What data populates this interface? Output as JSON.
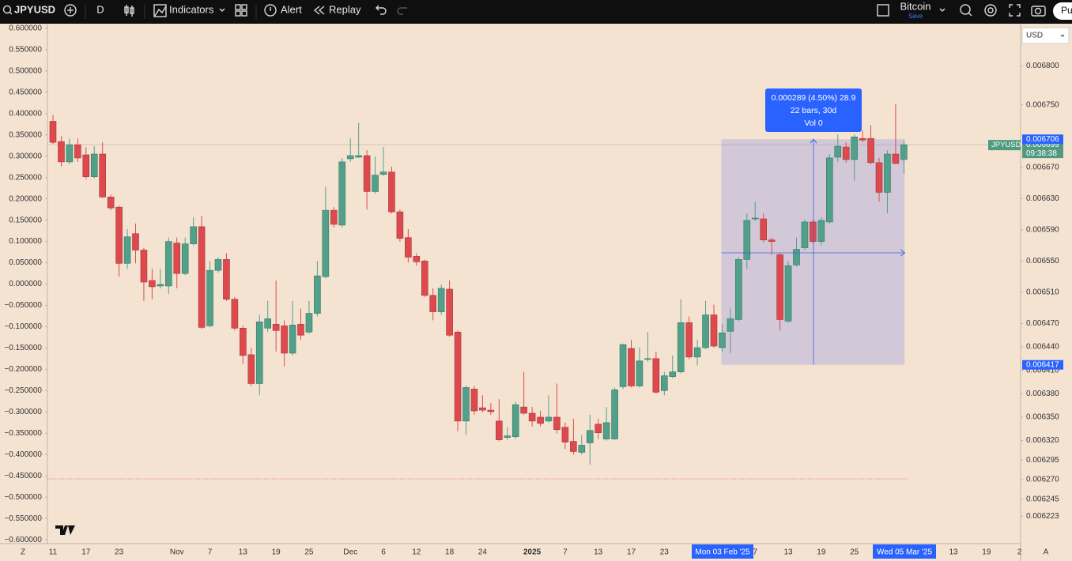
{
  "toolbar": {
    "symbol": "JPYUSD",
    "interval": "D",
    "indicators": "Indicators",
    "alert": "Alert",
    "replay": "Replay",
    "layout_name": "Bitcoin",
    "save": "Save",
    "publish": "Pu"
  },
  "chart": {
    "type": "candlestick",
    "currency": "USD",
    "colors": {
      "up": "#53a08a",
      "down": "#dc4a4e"
    },
    "ylim": [
      0.006188,
      0.006854
    ],
    "yticks": [
      {
        "value": 0.0068,
        "label": "0.006800"
      },
      {
        "value": 0.00675,
        "label": "0.006750"
      },
      {
        "value": 0.00667,
        "label": "0.006670"
      },
      {
        "value": 0.00663,
        "label": "0.006630"
      },
      {
        "value": 0.00659,
        "label": "0.006590"
      },
      {
        "value": 0.00655,
        "label": "0.006550"
      },
      {
        "value": 0.00651,
        "label": "0.006510"
      },
      {
        "value": 0.00647,
        "label": "0.006470"
      },
      {
        "value": 0.00644,
        "label": "0.006440"
      },
      {
        "value": 0.00641,
        "label": "0.006410"
      },
      {
        "value": 0.00638,
        "label": "0.006380"
      },
      {
        "value": 0.00635,
        "label": "0.006350"
      },
      {
        "value": 0.00632,
        "label": "0.006320"
      },
      0.006295,
      {
        "value": 0.00627,
        "label": "0.006270"
      },
      0.006245,
      0.006223
    ],
    "left_ylim": [
      -0.609,
      0.611
    ],
    "left_ticks": [
      {
        "value": 0.6,
        "label": "0.600000"
      },
      {
        "value": 0.55,
        "label": "0.550000"
      },
      {
        "value": 0.5,
        "label": "0.500000"
      },
      {
        "value": 0.45,
        "label": "0.450000"
      },
      {
        "value": 0.4,
        "label": "0.400000"
      },
      {
        "value": 0.35,
        "label": "0.350000"
      },
      {
        "value": 0.3,
        "label": "0.300000"
      },
      {
        "value": 0.25,
        "label": "0.250000"
      },
      {
        "value": 0.2,
        "label": "0.200000"
      },
      {
        "value": 0.15,
        "label": "0.150000"
      },
      {
        "value": 0.1,
        "label": "0.100000"
      },
      {
        "value": 0.05,
        "label": "0.050000"
      },
      {
        "value": 0,
        "label": "0.000000"
      },
      {
        "value": -0.05,
        "label": "−0.050000"
      },
      {
        "value": -0.1,
        "label": "−0.100000"
      },
      {
        "value": -0.15,
        "label": "−0.150000"
      },
      {
        "value": -0.2,
        "label": "−0.200000"
      },
      {
        "value": -0.25,
        "label": "−0.250000"
      },
      {
        "value": -0.3,
        "label": "−0.300000"
      },
      {
        "value": -0.35,
        "label": "−0.350000"
      },
      {
        "value": -0.4,
        "label": "−0.400000"
      },
      {
        "value": -0.45,
        "label": "−0.450000"
      },
      {
        "value": -0.5,
        "label": "−0.500000"
      },
      {
        "value": -0.55,
        "label": "−0.550000"
      },
      {
        "value": -0.6,
        "label": "−0.600000"
      }
    ],
    "x_labels": [
      "11",
      "17",
      "23",
      "Nov",
      "7",
      "13",
      "19",
      "25",
      "Dec",
      "6",
      "12",
      "18",
      "24",
      "2025",
      "7",
      "13",
      "17",
      "23",
      "7",
      "13",
      "19",
      "25",
      "13",
      "19",
      "2"
    ],
    "bottom_controls": [
      "Z",
      "A"
    ],
    "last_price": {
      "symbol": "JPYUSD",
      "value": 0.006699,
      "countdown": "09:38:38"
    },
    "measure": {
      "high": 0.006706,
      "low": 0.006417,
      "text": [
        "0.000289 (4.50%) 28.9",
        "22 bars, 30d",
        "Vol 0"
      ],
      "start_label": "Mon 03 Feb '25",
      "end_label": "Wed 05 Mar '25"
    },
    "candles": [
      [
        0.006729,
        0.006737,
        0.0067,
        0.006702
      ],
      [
        0.006703,
        0.00671,
        0.006671,
        0.006677
      ],
      [
        0.006677,
        0.006707,
        0.006674,
        0.006699
      ],
      [
        0.006699,
        0.006707,
        0.006677,
        0.006682
      ],
      [
        0.006686,
        0.006696,
        0.006655,
        0.006658
      ],
      [
        0.006658,
        0.006697,
        0.006656,
        0.006687
      ],
      [
        0.006687,
        0.006702,
        0.006631,
        0.006632
      ],
      [
        0.006632,
        0.006635,
        0.006615,
        0.006618
      ],
      [
        0.006619,
        0.006621,
        0.00653,
        0.006547
      ],
      [
        0.006547,
        0.006591,
        0.00654,
        0.006581
      ],
      [
        0.006585,
        0.006598,
        0.006547,
        0.006564
      ],
      [
        0.006564,
        0.006567,
        0.006499,
        0.006523
      ],
      [
        0.006525,
        0.00654,
        0.006501,
        0.006517
      ],
      [
        0.006518,
        0.00654,
        0.006515,
        0.00652
      ],
      [
        0.006518,
        0.00658,
        0.006508,
        0.006575
      ],
      [
        0.006573,
        0.00658,
        0.006515,
        0.006534
      ],
      [
        0.006534,
        0.00658,
        0.006532,
        0.006572
      ],
      [
        0.006572,
        0.006606,
        0.00657,
        0.006594
      ],
      [
        0.006594,
        0.006608,
        0.006463,
        0.006465
      ],
      [
        0.006467,
        0.00655,
        0.006465,
        0.006538
      ],
      [
        0.006538,
        0.006555,
        0.006535,
        0.006552
      ],
      [
        0.006552,
        0.00656,
        0.006499,
        0.006501
      ],
      [
        0.006501,
        0.006504,
        0.006461,
        0.006464
      ],
      [
        0.006464,
        0.006467,
        0.006418,
        0.006429
      ],
      [
        0.00643,
        0.006439,
        0.00639,
        0.006393
      ],
      [
        0.006393,
        0.006481,
        0.006378,
        0.006472
      ],
      [
        0.006464,
        0.006499,
        0.006459,
        0.006476
      ],
      [
        0.006469,
        0.006525,
        0.006434,
        0.006461
      ],
      [
        0.006467,
        0.006474,
        0.006415,
        0.006432
      ],
      [
        0.006432,
        0.006499,
        0.006429,
        0.006468
      ],
      [
        0.006469,
        0.006489,
        0.006449,
        0.006455
      ],
      [
        0.006459,
        0.006499,
        0.006457,
        0.006483
      ],
      [
        0.006483,
        0.00655,
        0.006479,
        0.006531
      ],
      [
        0.00653,
        0.006645,
        0.006528,
        0.006615
      ],
      [
        0.006615,
        0.006619,
        0.006593,
        0.006597
      ],
      [
        0.006596,
        0.006682,
        0.006593,
        0.006677
      ],
      [
        0.006681,
        0.006707,
        0.006677,
        0.006685
      ],
      [
        0.006683,
        0.006727,
        0.006682,
        0.006685
      ],
      [
        0.006685,
        0.006692,
        0.006616,
        0.006639
      ],
      [
        0.006639,
        0.006684,
        0.006636,
        0.00666
      ],
      [
        0.006661,
        0.006696,
        0.006659,
        0.006664
      ],
      [
        0.006664,
        0.006671,
        0.006611,
        0.006613
      ],
      [
        0.006613,
        0.006616,
        0.006575,
        0.006579
      ],
      [
        0.00658,
        0.006591,
        0.006548,
        0.006555
      ],
      [
        0.006556,
        0.00656,
        0.006544,
        0.006549
      ],
      [
        0.00655,
        0.006552,
        0.006504,
        0.006506
      ],
      [
        0.006506,
        0.006515,
        0.006474,
        0.006485
      ],
      [
        0.006485,
        0.00652,
        0.006481,
        0.006515
      ],
      [
        0.006514,
        0.006525,
        0.006453,
        0.006455
      ],
      [
        0.006459,
        0.006461,
        0.006332,
        0.006345
      ],
      [
        0.006345,
        0.00639,
        0.006327,
        0.006388
      ],
      [
        0.006386,
        0.00639,
        0.006353,
        0.006358
      ],
      [
        0.006362,
        0.006378,
        0.006356,
        0.006359
      ],
      [
        0.006359,
        0.006368,
        0.006353,
        0.006357
      ],
      [
        0.006345,
        0.006373,
        0.006319,
        0.006321
      ],
      [
        0.006324,
        0.006337,
        0.006321,
        0.006326
      ],
      [
        0.006325,
        0.00637,
        0.006322,
        0.006366
      ],
      [
        0.006363,
        0.006408,
        0.006353,
        0.006355
      ],
      [
        0.006355,
        0.006363,
        0.006338,
        0.006345
      ],
      [
        0.00635,
        0.006358,
        0.006338,
        0.006342
      ],
      [
        0.006345,
        0.006378,
        0.006343,
        0.00635
      ],
      [
        0.00635,
        0.006393,
        0.006329,
        0.006334
      ],
      [
        0.006337,
        0.006343,
        0.006309,
        0.006318
      ],
      [
        0.006319,
        0.006348,
        0.006302,
        0.006306
      ],
      [
        0.006305,
        0.006327,
        0.006302,
        0.006314
      ],
      [
        0.006317,
        0.006353,
        0.006289,
        0.006333
      ],
      [
        0.006341,
        0.006348,
        0.006322,
        0.00633
      ],
      [
        0.006322,
        0.006363,
        0.00632,
        0.006343
      ],
      [
        0.006322,
        0.006388,
        0.006321,
        0.006385
      ],
      [
        0.006389,
        0.006444,
        0.006386,
        0.006443
      ],
      [
        0.006438,
        0.006449,
        0.006388,
        0.00639
      ],
      [
        0.00639,
        0.006439,
        0.006388,
        0.006422
      ],
      [
        0.006424,
        0.006459,
        0.006421,
        0.006425
      ],
      [
        0.006425,
        0.006434,
        0.00638,
        0.006382
      ],
      [
        0.006384,
        0.006408,
        0.006378,
        0.006403
      ],
      [
        0.006402,
        0.006429,
        0.0064,
        0.006408
      ],
      [
        0.006408,
        0.006501,
        0.006406,
        0.006471
      ],
      [
        0.006471,
        0.006479,
        0.006424,
        0.006427
      ],
      [
        0.006427,
        0.006449,
        0.006416,
        0.006439
      ],
      [
        0.006439,
        0.006499,
        0.006437,
        0.006481
      ],
      [
        0.006481,
        0.006494,
        0.006439,
        0.006441
      ],
      [
        0.006439,
        0.006469,
        0.006434,
        0.006458
      ],
      [
        0.00646,
        0.006489,
        0.006432,
        0.006476
      ],
      [
        0.006475,
        0.006555,
        0.006473,
        0.006552
      ],
      [
        0.006552,
        0.006611,
        0.00654,
        0.006602
      ],
      [
        0.006604,
        0.006626,
        0.006601,
        0.006605
      ],
      [
        0.006604,
        0.006611,
        0.006574,
        0.006577
      ],
      [
        0.006577,
        0.00658,
        0.006558,
        0.006575
      ],
      [
        0.006558,
        0.00656,
        0.006461,
        0.006475
      ],
      [
        0.006473,
        0.00655,
        0.006471,
        0.006544
      ],
      [
        0.006545,
        0.00658,
        0.006543,
        0.006565
      ],
      [
        0.006567,
        0.006603,
        0.006564,
        0.0066
      ],
      [
        0.0066,
        0.006603,
        0.006572,
        0.006575
      ],
      [
        0.006575,
        0.006606,
        0.00657,
        0.006602
      ],
      [
        0.0066,
        0.006687,
        0.006598,
        0.006682
      ],
      [
        0.006683,
        0.006712,
        0.006677,
        0.006697
      ],
      [
        0.006696,
        0.006702,
        0.006676,
        0.00668
      ],
      [
        0.00668,
        0.006712,
        0.006653,
        0.006709
      ],
      [
        0.006707,
        0.006717,
        0.006702,
        0.006705
      ],
      [
        0.006707,
        0.006724,
        0.006674,
        0.006676
      ],
      [
        0.006676,
        0.006682,
        0.006626,
        0.006638
      ],
      [
        0.006638,
        0.006692,
        0.006611,
        0.006687
      ],
      [
        0.006687,
        0.006751,
        0.006674,
        0.006675
      ],
      [
        0.00668,
        0.006704,
        0.006662,
        0.006699
      ]
    ]
  }
}
